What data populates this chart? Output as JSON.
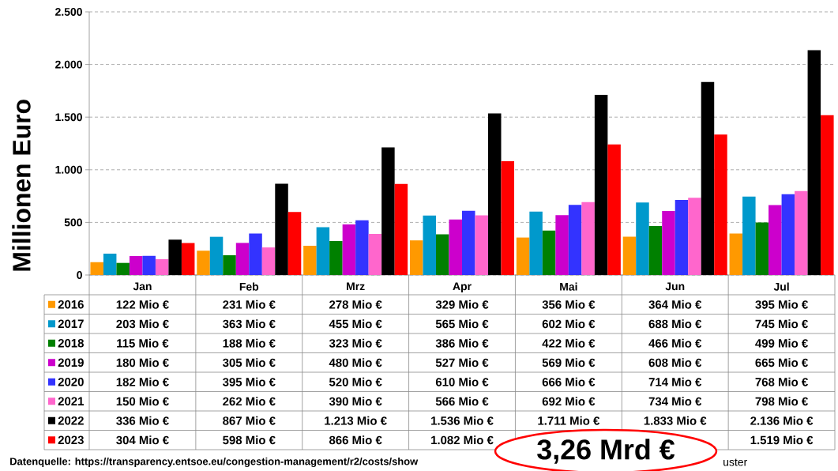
{
  "chart_data": {
    "type": "bar",
    "ylabel": "Millionen Euro",
    "categories": [
      "Jan",
      "Feb",
      "Mrz",
      "Apr",
      "Mai",
      "Jun",
      "Jul"
    ],
    "series": [
      {
        "name": "2016",
        "color": "#FF9900",
        "values": [
          122,
          231,
          278,
          329,
          356,
          364,
          395
        ],
        "value_labels": [
          "122 Mio €",
          "231 Mio €",
          "278 Mio €",
          "329 Mio €",
          "356 Mio €",
          "364 Mio €",
          "395 Mio €"
        ]
      },
      {
        "name": "2017",
        "color": "#0099CC",
        "values": [
          203,
          363,
          455,
          565,
          602,
          688,
          745
        ],
        "value_labels": [
          "203 Mio €",
          "363 Mio €",
          "455 Mio €",
          "565 Mio €",
          "602 Mio €",
          "688 Mio €",
          "745 Mio €"
        ]
      },
      {
        "name": "2018",
        "color": "#008000",
        "values": [
          115,
          188,
          323,
          386,
          422,
          466,
          499
        ],
        "value_labels": [
          "115 Mio €",
          "188 Mio €",
          "323 Mio €",
          "386 Mio €",
          "422 Mio €",
          "466 Mio €",
          "499 Mio €"
        ]
      },
      {
        "name": "2019",
        "color": "#CC00CC",
        "values": [
          180,
          305,
          480,
          527,
          569,
          608,
          665
        ],
        "value_labels": [
          "180 Mio €",
          "305 Mio €",
          "480 Mio €",
          "527 Mio €",
          "569 Mio €",
          "608 Mio €",
          "665 Mio €"
        ]
      },
      {
        "name": "2020",
        "color": "#3333FF",
        "values": [
          182,
          395,
          520,
          610,
          666,
          714,
          768
        ],
        "value_labels": [
          "182 Mio €",
          "395 Mio €",
          "520 Mio €",
          "610 Mio €",
          "666 Mio €",
          "714 Mio €",
          "768 Mio €"
        ]
      },
      {
        "name": "2021",
        "color": "#FF66CC",
        "values": [
          150,
          262,
          390,
          566,
          692,
          734,
          798
        ],
        "value_labels": [
          "150 Mio €",
          "262 Mio €",
          "390 Mio €",
          "566 Mio €",
          "692 Mio €",
          "734 Mio €",
          "798 Mio €"
        ]
      },
      {
        "name": "2022",
        "color": "#000000",
        "values": [
          336,
          867,
          1213,
          1536,
          1711,
          1833,
          2136
        ],
        "value_labels": [
          "336 Mio €",
          "867 Mio €",
          "1.213 Mio €",
          "1.536 Mio €",
          "1.711 Mio €",
          "1.833 Mio €",
          "2.136 Mio €"
        ]
      },
      {
        "name": "2023",
        "color": "#FF0000",
        "values": [
          304,
          598,
          866,
          1082,
          1240,
          1335,
          1519
        ],
        "value_labels": [
          "304 Mio €",
          "598 Mio €",
          "866 Mio €",
          "1.082 Mio €",
          null,
          null,
          "1.519 Mio €"
        ]
      }
    ],
    "ylim": [
      0,
      2500
    ],
    "yticks": [
      0,
      500,
      {
        "value": 1000,
        "label": "1.000"
      },
      {
        "value": 1500,
        "label": "1.500"
      },
      {
        "value": 2000,
        "label": "2.000"
      },
      {
        "value": 2500,
        "label": "2.500"
      }
    ],
    "grid": "y",
    "legend": "bottom",
    "annotations": [
      "Datenquelle:  https://transparency.entsoe.eu/congestion-management/r2/costs/show",
      "3,26 Mrd €",
      "uster"
    ]
  }
}
